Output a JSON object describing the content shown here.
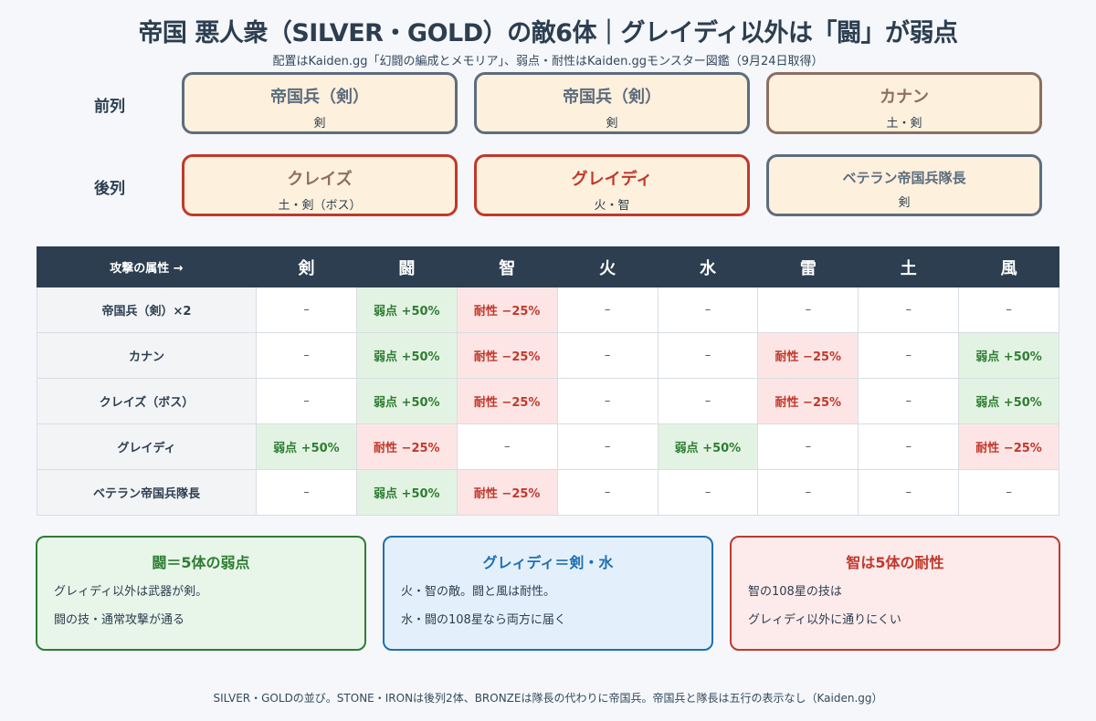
{
  "title": "帝国 悪人衆（SILVER・GOLD）の敵6体｜グレイディ以外は「闘」が弱点",
  "subtitle": "配置はKaiden.gg「幻闘の編成とメモリア」、弱点・耐性はKaiden.ggモンスター図鑑（9月24日取得）",
  "formation": {
    "front_label": "前列",
    "back_label": "後列",
    "front": [
      {
        "name": "帝国兵（剣）",
        "attr": "剣"
      },
      {
        "name": "帝国兵（剣）",
        "attr": "剣"
      },
      {
        "name": "カナン",
        "attr": "土・剣"
      }
    ],
    "back": [
      {
        "name": "クレイズ",
        "attr": "土・剣（ボス）"
      },
      {
        "name": "グレイディ",
        "attr": "火・智"
      },
      {
        "name": "ベテラン帝国兵隊長",
        "attr": "剣"
      }
    ]
  },
  "table": {
    "corner": "攻撃の属性 →",
    "columns": [
      "剣",
      "闘",
      "智",
      "火",
      "水",
      "雷",
      "土",
      "風"
    ],
    "rows": [
      {
        "name": "帝国兵（剣）×2",
        "cells": [
          "–",
          "弱点 +50%",
          "耐性 −25%",
          "–",
          "–",
          "–",
          "–",
          "–"
        ]
      },
      {
        "name": "カナン",
        "cells": [
          "–",
          "弱点 +50%",
          "耐性 −25%",
          "–",
          "–",
          "耐性 −25%",
          "–",
          "弱点 +50%"
        ]
      },
      {
        "name": "クレイズ（ボス）",
        "cells": [
          "–",
          "弱点 +50%",
          "耐性 −25%",
          "–",
          "–",
          "耐性 −25%",
          "–",
          "弱点 +50%"
        ]
      },
      {
        "name": "グレイディ",
        "cells": [
          "弱点 +50%",
          "耐性 −25%",
          "–",
          "–",
          "弱点 +50%",
          "–",
          "–",
          "耐性 −25%"
        ]
      },
      {
        "name": "ベテラン帝国兵隊長",
        "cells": [
          "–",
          "弱点 +50%",
          "耐性 −25%",
          "–",
          "–",
          "–",
          "–",
          "–"
        ]
      }
    ]
  },
  "notes": [
    {
      "title": "闘＝5体の弱点",
      "lines": [
        "グレィディ以外は武器が剣。",
        "闘の技・通常攻撃が通る"
      ]
    },
    {
      "title": "グレィディ＝剣・水",
      "lines": [
        "火・智の敵。闘と風は耐性。",
        "水・闘の108星なら両方に届く"
      ]
    },
    {
      "title": "智は5体の耐性",
      "lines": [
        "智の108星の技は",
        "グレィディ以外に通りにくい"
      ]
    }
  ],
  "footer": "SILVER・GOLDの並び。STONE・IRONは後列2体、BRONZEは隊長の代わりに帝国兵。帝国兵と隊長は五行の表示なし（Kaiden.gg）"
}
